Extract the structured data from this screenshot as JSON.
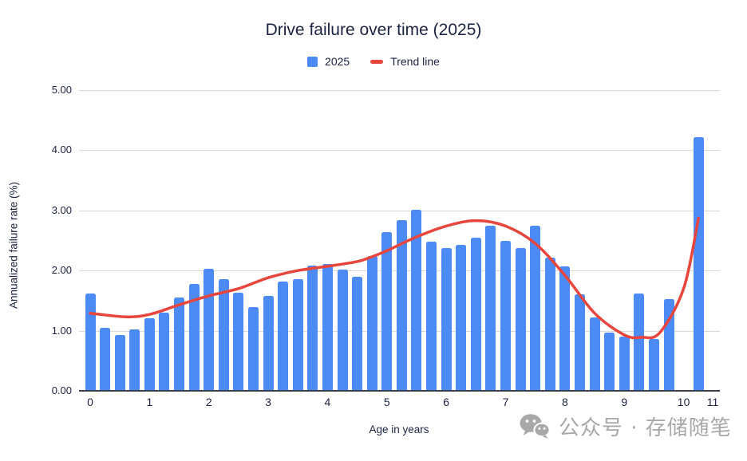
{
  "chart_data": {
    "type": "bar",
    "title": "Drive failure over time (2025)",
    "xlabel": "Age in years",
    "ylabel": "Annualized failure rate (%)",
    "legend_position": "top",
    "grid": true,
    "ylim": [
      0,
      5
    ],
    "xlim": [
      -0.25,
      10.6
    ],
    "y_ticks": [
      "0.00",
      "1.00",
      "2.00",
      "3.00",
      "4.00",
      "5.00"
    ],
    "x_ticks": [
      "0",
      "1",
      "2",
      "3",
      "4",
      "5",
      "6",
      "7",
      "8",
      "9",
      "10",
      "11"
    ],
    "legend": [
      {
        "label": "2025",
        "type": "bar",
        "color": "#4c8af6"
      },
      {
        "label": "Trend line",
        "type": "line",
        "color": "#e8453c"
      }
    ],
    "bar_color": "#4c8af6",
    "trend_color": "#e8453c",
    "bars": [
      {
        "x": 0.0,
        "v": 1.62
      },
      {
        "x": 0.25,
        "v": 1.05
      },
      {
        "x": 0.5,
        "v": 0.93
      },
      {
        "x": 0.75,
        "v": 1.02
      },
      {
        "x": 1.0,
        "v": 1.21
      },
      {
        "x": 1.25,
        "v": 1.3
      },
      {
        "x": 1.5,
        "v": 1.55
      },
      {
        "x": 1.75,
        "v": 1.78
      },
      {
        "x": 2.0,
        "v": 2.03
      },
      {
        "x": 2.25,
        "v": 1.86
      },
      {
        "x": 2.5,
        "v": 1.63
      },
      {
        "x": 2.75,
        "v": 1.39
      },
      {
        "x": 3.0,
        "v": 1.58
      },
      {
        "x": 3.25,
        "v": 1.82
      },
      {
        "x": 3.5,
        "v": 1.86
      },
      {
        "x": 3.75,
        "v": 2.08
      },
      {
        "x": 4.0,
        "v": 2.11
      },
      {
        "x": 4.25,
        "v": 2.02
      },
      {
        "x": 4.5,
        "v": 1.89
      },
      {
        "x": 4.75,
        "v": 2.24
      },
      {
        "x": 5.0,
        "v": 2.64
      },
      {
        "x": 5.25,
        "v": 2.84
      },
      {
        "x": 5.5,
        "v": 3.01
      },
      {
        "x": 5.75,
        "v": 2.48
      },
      {
        "x": 6.0,
        "v": 2.37
      },
      {
        "x": 6.25,
        "v": 2.43
      },
      {
        "x": 6.5,
        "v": 2.55
      },
      {
        "x": 6.75,
        "v": 2.75
      },
      {
        "x": 7.0,
        "v": 2.49
      },
      {
        "x": 7.25,
        "v": 2.38
      },
      {
        "x": 7.5,
        "v": 2.74
      },
      {
        "x": 7.75,
        "v": 2.22
      },
      {
        "x": 8.0,
        "v": 2.07
      },
      {
        "x": 8.25,
        "v": 1.61
      },
      {
        "x": 8.5,
        "v": 1.22
      },
      {
        "x": 8.75,
        "v": 0.97
      },
      {
        "x": 9.0,
        "v": 0.9
      },
      {
        "x": 9.25,
        "v": 1.62
      },
      {
        "x": 9.5,
        "v": 0.86
      },
      {
        "x": 9.75,
        "v": 1.53
      },
      {
        "x": 10.25,
        "v": 4.22
      }
    ],
    "trend_points": [
      [
        0.0,
        1.29
      ],
      [
        0.6,
        1.23
      ],
      [
        1.0,
        1.27
      ],
      [
        1.5,
        1.43
      ],
      [
        2.0,
        1.58
      ],
      [
        2.5,
        1.7
      ],
      [
        3.0,
        1.88
      ],
      [
        3.5,
        2.0
      ],
      [
        4.0,
        2.07
      ],
      [
        4.5,
        2.15
      ],
      [
        4.75,
        2.23
      ],
      [
        5.0,
        2.33
      ],
      [
        5.5,
        2.56
      ],
      [
        6.0,
        2.74
      ],
      [
        6.5,
        2.83
      ],
      [
        7.0,
        2.74
      ],
      [
        7.5,
        2.45
      ],
      [
        8.0,
        1.92
      ],
      [
        8.5,
        1.29
      ],
      [
        9.0,
        0.93
      ],
      [
        9.3,
        0.89
      ],
      [
        9.6,
        0.97
      ],
      [
        10.0,
        1.7
      ],
      [
        10.25,
        2.87
      ]
    ]
  },
  "watermark": {
    "text": "公众号 · 存储随笔",
    "icon": "wechat-icon",
    "color": "#a8a8a8"
  }
}
